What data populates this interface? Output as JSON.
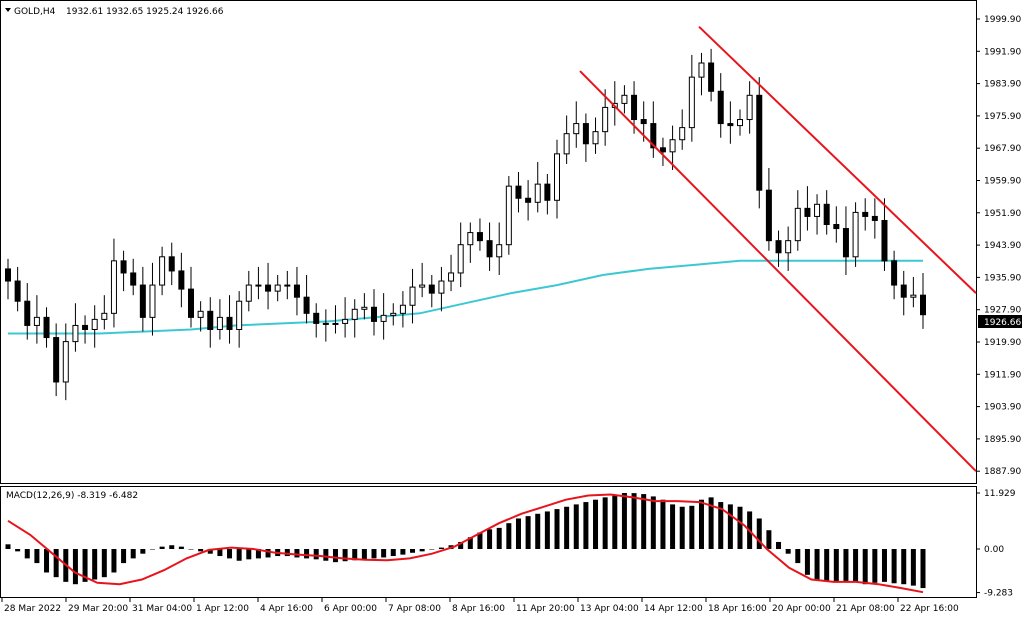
{
  "header": {
    "symbol": "GOLD,H4",
    "ohlc": "1932.61 1932.65 1925.24 1926.66",
    "macd_label": "MACD(12,26,9) -8.319 -6.482"
  },
  "current_price_label": "1926.66",
  "colors": {
    "bull_candle": "#ffffff",
    "bear_candle": "#000000",
    "ma_line": "#3cc8d2",
    "channel": "#e8141c",
    "signal_line": "#e8141c",
    "histogram": "#000000",
    "price_tag_bg": "#000000"
  },
  "chart_data": [
    {
      "type": "candlestick",
      "symbol": "GOLD",
      "timeframe": "H4",
      "price_axis": {
        "ticks": [
          "1999.90",
          "1991.90",
          "1983.90",
          "1975.90",
          "1967.90",
          "1959.90",
          "1951.90",
          "1943.90",
          "1935.90",
          "1927.90",
          "1919.90",
          "1911.90",
          "1903.90",
          "1895.90",
          "1887.90"
        ],
        "range": [
          1887.9,
          2001.4
        ]
      },
      "time_axis": {
        "labels": [
          "28 Mar 2022",
          "29 Mar 20:00",
          "31 Mar 04:00",
          "1 Apr 12:00",
          "4 Apr 16:00",
          "6 Apr 00:00",
          "7 Apr 08:00",
          "8 Apr 16:00",
          "11 Apr 20:00",
          "13 Apr 04:00",
          "14 Apr 12:00",
          "18 Apr 16:00",
          "20 Apr 00:00",
          "21 Apr 08:00",
          "22 Apr 16:00"
        ]
      },
      "candles_close": [
        1935.0,
        1930.0,
        1924.0,
        1926.0,
        1921.0,
        1910.0,
        1920.0,
        1924.0,
        1923.0,
        1925.5,
        1927.0,
        1940.0,
        1937.0,
        1934.0,
        1926.0,
        1934.0,
        1941.0,
        1937.5,
        1933.0,
        1926.0,
        1927.5,
        1923.0,
        1926.0,
        1923.0,
        1930.0,
        1934.0,
        1934.0,
        1932.5,
        1934.0,
        1934.0,
        1931.0,
        1927.0,
        1924.5,
        1924.5,
        1924.5,
        1925.5,
        1928.0,
        1928.5,
        1925.0,
        1926.5,
        1927.0,
        1929.0,
        1933.5,
        1934.0,
        1932.0,
        1935.0,
        1937.0,
        1944.0,
        1947.0,
        1945.0,
        1941.0,
        1944.0,
        1958.5,
        1955.5,
        1954.5,
        1959.0,
        1955.0,
        1966.5,
        1971.5,
        1974.0,
        1969.0,
        1972.0,
        1978.0,
        1979.0,
        1981.0,
        1975.0,
        1974.0,
        1968.0,
        1967.0,
        1970.0,
        1973.0,
        1985.5,
        1989.0,
        1982.0,
        1974.0,
        1973.5,
        1975.0,
        1981.0,
        1957.5,
        1945.0,
        1942.0,
        1945.0,
        1953.0,
        1951.0,
        1954.0,
        1949.0,
        1948.0,
        1941.0,
        1952.0,
        1951.0,
        1950.0,
        1940.0,
        1934.0,
        1931.0,
        1931.5,
        1926.66
      ],
      "moving_average": {
        "color": "#3cc8d2",
        "values": [
          1922.0,
          1922.0,
          1922.0,
          1922.5,
          1923.0,
          1924.0,
          1924.5,
          1925.0,
          1926.0,
          1927.0,
          1929.5,
          1932.0,
          1934.0,
          1936.5,
          1938.0,
          1939.0,
          1940.0,
          1940.0,
          1940.0,
          1940.0,
          1940.0
        ]
      },
      "channel": {
        "color": "#e8141c",
        "upper_line": [
          [
            "15 Apr",
            "1998.0"
          ],
          [
            "25 Apr",
            "1932.0"
          ]
        ],
        "lower_line": [
          [
            "13 Apr",
            "1987.0"
          ],
          [
            "25 Apr",
            "1887.9"
          ]
        ]
      }
    },
    {
      "type": "bar",
      "indicator": "MACD",
      "params": [
        12,
        26,
        9
      ],
      "main": -8.319,
      "signal": -6.482,
      "axis_ticks": [
        "11.929",
        "0.00",
        "-9.283"
      ],
      "histogram": [
        1.0,
        -0.5,
        -2.0,
        -3.0,
        -5.0,
        -6.0,
        -7.0,
        -7.5,
        -7.0,
        -6.5,
        -6.0,
        -5.0,
        -3.0,
        -2.0,
        -1.0,
        0.0,
        0.5,
        0.8,
        0.5,
        0.0,
        -0.5,
        -1.0,
        -1.5,
        -2.0,
        -2.5,
        -2.2,
        -2.0,
        -1.8,
        -1.5,
        -1.5,
        -1.8,
        -2.0,
        -2.2,
        -2.5,
        -2.8,
        -2.6,
        -2.4,
        -2.2,
        -2.0,
        -1.8,
        -1.5,
        -1.2,
        -0.8,
        -0.5,
        0.0,
        0.3,
        0.8,
        1.5,
        2.5,
        3.5,
        4.2,
        4.5,
        5.5,
        6.5,
        7.0,
        7.5,
        8.0,
        8.5,
        9.0,
        9.5,
        10.0,
        10.5,
        11.0,
        11.5,
        11.929,
        11.9,
        11.7,
        11.2,
        10.5,
        9.5,
        9.0,
        9.2,
        10.5,
        11.0,
        10.0,
        9.5,
        9.0,
        8.0,
        6.5,
        4.0,
        1.5,
        -1.0,
        -3.0,
        -5.5,
        -6.5,
        -6.8,
        -7.0,
        -6.8,
        -7.0,
        -7.5,
        -7.2,
        -7.0,
        -7.3,
        -7.5,
        -7.8,
        -8.319
      ],
      "signal_line": [
        6.0,
        3.0,
        -1.0,
        -5.0,
        -7.2,
        -7.5,
        -6.5,
        -4.5,
        -2.0,
        -0.2,
        0.3,
        0.0,
        -0.8,
        -1.2,
        -1.5,
        -2.0,
        -2.3,
        -2.4,
        -2.0,
        -1.0,
        0.5,
        3.0,
        5.5,
        7.5,
        9.0,
        10.5,
        11.4,
        11.6,
        11.0,
        10.2,
        10.2,
        10.0,
        8.5,
        5.0,
        0.0,
        -4.0,
        -6.5,
        -7.0,
        -7.0,
        -7.5,
        -8.3,
        -9.2
      ]
    }
  ]
}
